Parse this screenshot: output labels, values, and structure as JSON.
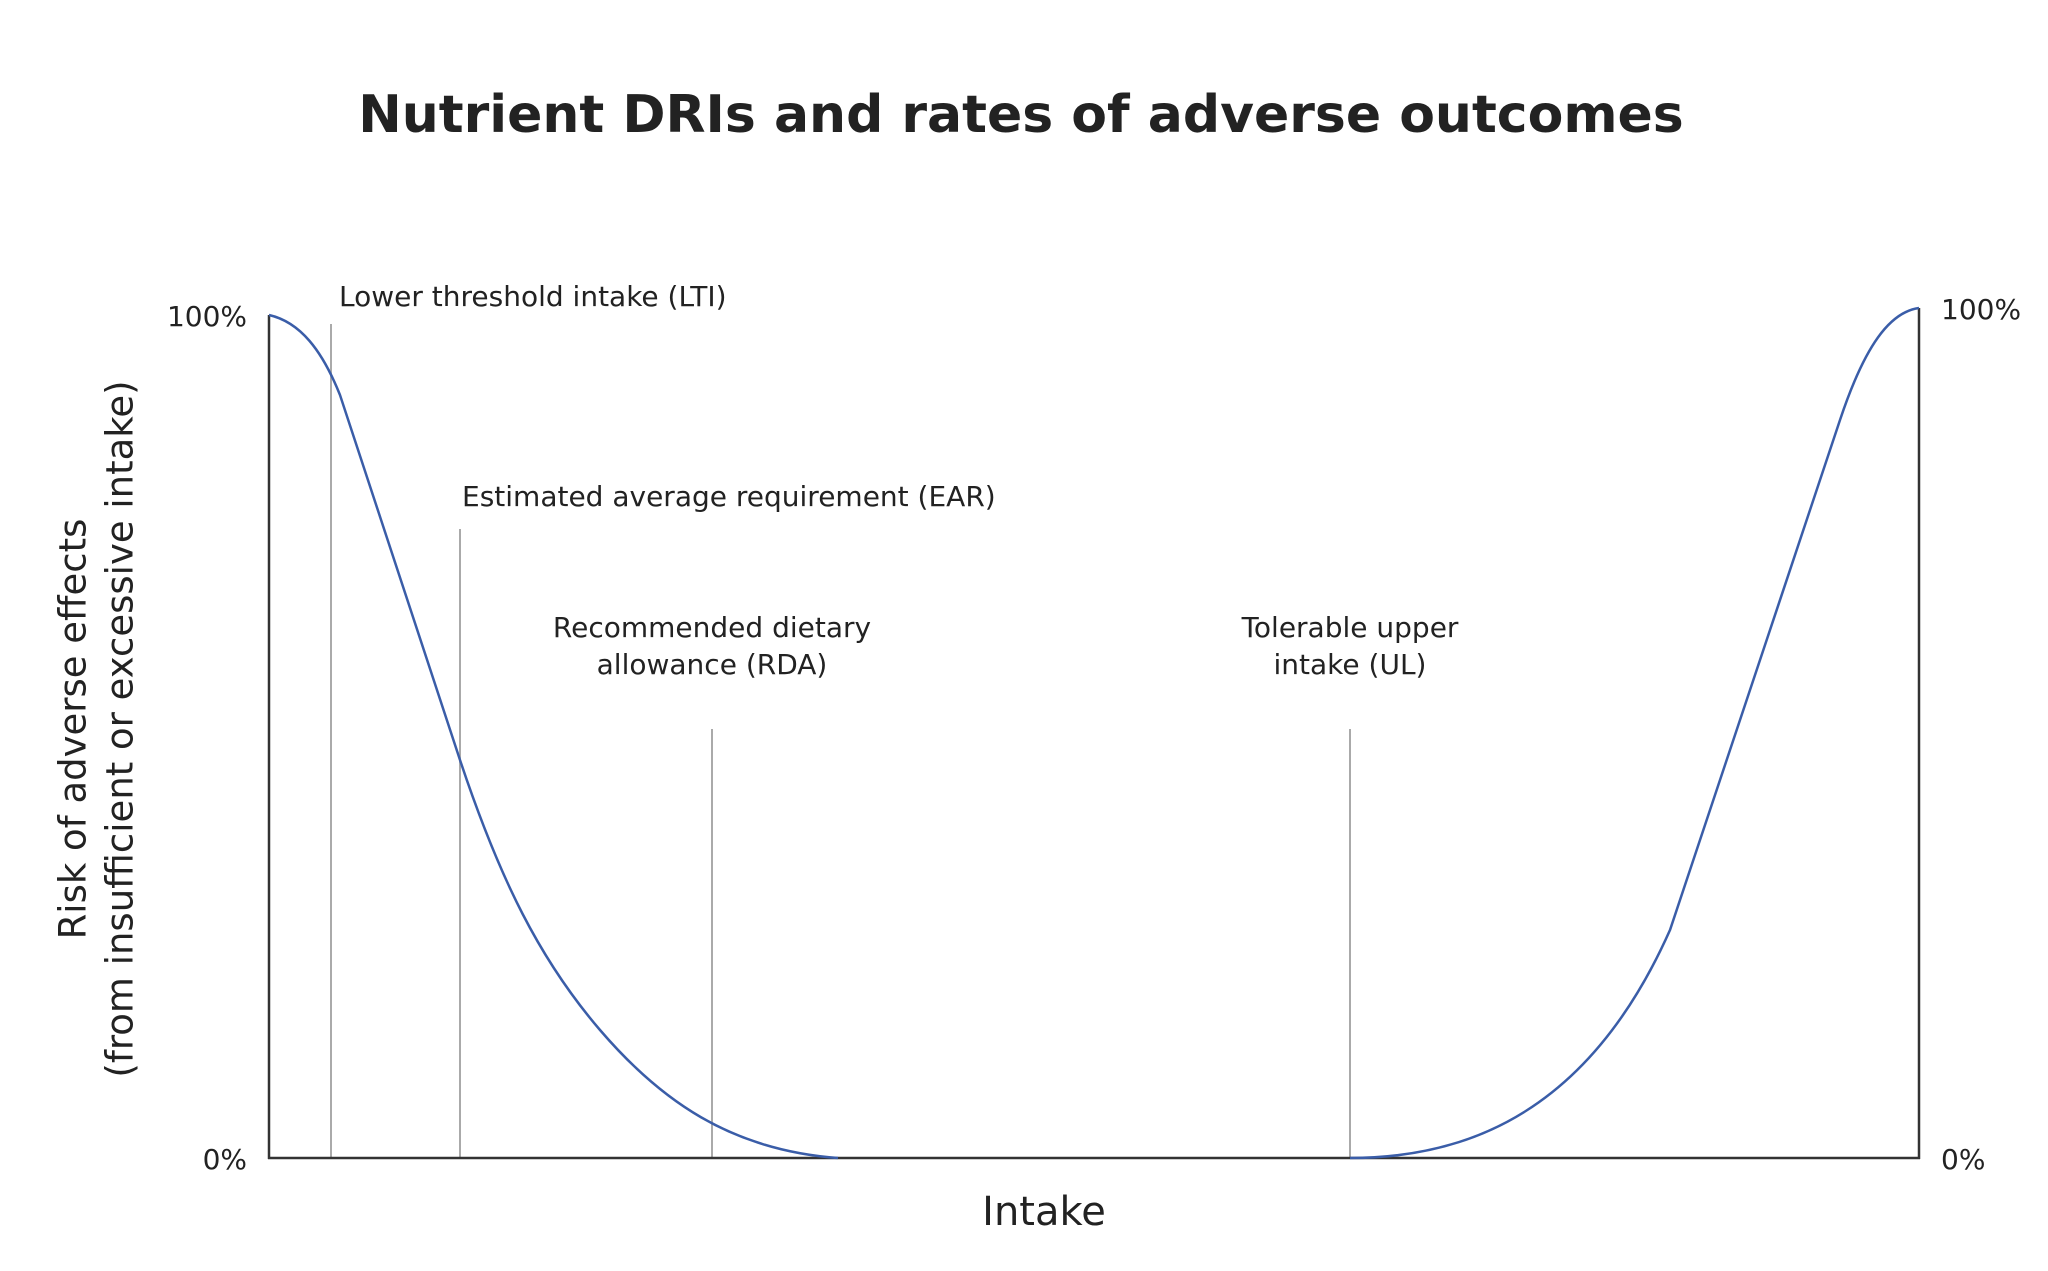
{
  "chart_data": {
    "type": "line",
    "title": "Nutrient DRIs and rates of adverse outcomes",
    "xlabel": "Intake",
    "ylabel": [
      "Risk of adverse effects",
      "(from insufficient or excessive intake)"
    ],
    "ylim": [
      0,
      100
    ],
    "yticks": [
      {
        "value": 0,
        "label": "0%"
      },
      {
        "value": 100,
        "label": "100%"
      }
    ],
    "y2lim": [
      0,
      100
    ],
    "y2ticks": [
      {
        "value": 0,
        "label": "0%"
      },
      {
        "value": 100,
        "label": "100%"
      }
    ],
    "annotations": [
      {
        "lines": [
          "Lower threshold intake (LTI)"
        ]
      },
      {
        "lines": [
          "Estimated average requirement (EAR)"
        ]
      },
      {
        "lines": [
          "Recommended dietary",
          "allowance (RDA)"
        ]
      },
      {
        "lines": [
          "Tolerable upper",
          "intake (UL)"
        ]
      }
    ]
  }
}
